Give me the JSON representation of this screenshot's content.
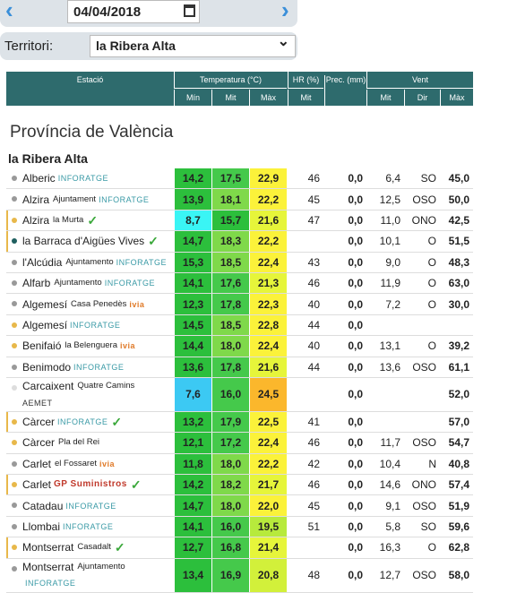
{
  "date": "04/04/2018",
  "territory_label": "Territori:",
  "territory_value": "la Ribera Alta",
  "header": {
    "station": "Estació",
    "temperature": "Temperatura (°C)",
    "humidity": "HR (%)",
    "precip": "Prec. (mm)",
    "wind": "Vent",
    "sub": [
      "Mín",
      "Mit",
      "Màx",
      "Mit",
      "Mit",
      "Dir",
      "Màx"
    ]
  },
  "province": "Província de València",
  "region": "la Ribera Alta",
  "rows": [
    {
      "name": "Alberic",
      "sub": null,
      "source": "INFORATGE",
      "check": false,
      "dot": "#999",
      "tall": false,
      "tmin": "14,2",
      "tmit": "17,5",
      "tmax": "22,9",
      "hr": "46",
      "prec": "0,0",
      "wmit": "6,4",
      "wdir": "SO",
      "wmax": "45,0"
    },
    {
      "name": "Alzira",
      "sub": "Ajuntament",
      "source": "INFORATGE",
      "check": false,
      "dot": "#999",
      "tall": false,
      "tmin": "13,9",
      "tmit": "18,1",
      "tmax": "22,2",
      "hr": "45",
      "prec": "0,0",
      "wmit": "12,5",
      "wdir": "OSO",
      "wmax": "50,0"
    },
    {
      "name": "Alzira",
      "sub": "la Murta",
      "source": null,
      "check": true,
      "dot": "#e8b84a",
      "tall": false,
      "tmin": "8,7",
      "tmit": "15,7",
      "tmax": "21,6",
      "hr": "47",
      "prec": "0,0",
      "wmit": "11,0",
      "wdir": "ONO",
      "wmax": "42,5"
    },
    {
      "name": "la Barraca d'Aigües Vives",
      "sub": null,
      "source": null,
      "check": true,
      "dot": "#1f5f5f",
      "tall": false,
      "tmin": "14,7",
      "tmit": "18,3",
      "tmax": "22,2",
      "hr": null,
      "prec": "0,0",
      "wmit": "10,1",
      "wdir": "O",
      "wmax": "51,5"
    },
    {
      "name": "l'Alcúdia",
      "sub": "Ajuntamento",
      "source": "INFORATGE",
      "check": false,
      "dot": "#999",
      "tall": false,
      "tmin": "15,3",
      "tmit": "18,5",
      "tmax": "22,4",
      "hr": "43",
      "prec": "0,0",
      "wmit": "9,0",
      "wdir": "O",
      "wmax": "48,3"
    },
    {
      "name": "Alfarb",
      "sub": "Ajuntamento",
      "source": "INFORATGE",
      "check": false,
      "dot": "#999",
      "tall": false,
      "tmin": "14,1",
      "tmit": "17,6",
      "tmax": "21,3",
      "hr": "46",
      "prec": "0,0",
      "wmit": "11,9",
      "wdir": "O",
      "wmax": "63,0"
    },
    {
      "name": "Algemesí",
      "sub": "Casa Penedès",
      "source": "ivia",
      "check": false,
      "dot": "#999",
      "tall": false,
      "tmin": "12,3",
      "tmit": "17,8",
      "tmax": "22,3",
      "hr": "40",
      "prec": "0,0",
      "wmit": "7,2",
      "wdir": "O",
      "wmax": "30,0"
    },
    {
      "name": "Algemesí",
      "sub": null,
      "source": "INFORATGE",
      "check": false,
      "dot": "#e8b84a",
      "tall": false,
      "tmin": "14,5",
      "tmit": "18,5",
      "tmax": "22,8",
      "hr": "44",
      "prec": "0,0",
      "wmit": null,
      "wdir": null,
      "wmax": null
    },
    {
      "name": "Benifaió",
      "sub": "la Belenguera",
      "source": "ivia",
      "check": false,
      "dot": "#e8b84a",
      "tall": false,
      "tmin": "14,4",
      "tmit": "18,0",
      "tmax": "22,4",
      "hr": "40",
      "prec": "0,0",
      "wmit": "13,1",
      "wdir": "O",
      "wmax": "39,2"
    },
    {
      "name": "Benimodo",
      "sub": null,
      "source": "INFORATGE",
      "check": false,
      "dot": "#999",
      "tall": false,
      "tmin": "13,6",
      "tmit": "17,8",
      "tmax": "21,6",
      "hr": "44",
      "prec": "0,0",
      "wmit": "13,6",
      "wdir": "OSO",
      "wmax": "61,1"
    },
    {
      "name": "Carcaixent",
      "sub": "Quatre Camins",
      "source": "AEMET",
      "check": false,
      "dot": "#ddd",
      "tall": true,
      "tmin": "7,6",
      "tmit": "16,0",
      "tmax": "24,5",
      "hr": null,
      "prec": "0,0",
      "wmit": null,
      "wdir": null,
      "wmax": "52,0"
    },
    {
      "name": "Càrcer",
      "sub": null,
      "source": "INFORATGE",
      "check": true,
      "dot": "#e8b84a",
      "tall": false,
      "tmin": "13,2",
      "tmit": "17,9",
      "tmax": "22,5",
      "hr": "41",
      "prec": "0,0",
      "wmit": null,
      "wdir": null,
      "wmax": "57,0"
    },
    {
      "name": "Càrcer",
      "sub": "Pla del Rei",
      "source": null,
      "check": false,
      "dot": "#e8b84a",
      "tall": false,
      "tmin": "12,1",
      "tmit": "17,2",
      "tmax": "22,4",
      "hr": "46",
      "prec": "0,0",
      "wmit": "11,7",
      "wdir": "OSO",
      "wmax": "54,7"
    },
    {
      "name": "Carlet",
      "sub": "el Fossaret",
      "source": "ivia",
      "check": false,
      "dot": "#999",
      "tall": false,
      "tmin": "11,8",
      "tmit": "18,0",
      "tmax": "22,2",
      "hr": "42",
      "prec": "0,0",
      "wmit": "10,4",
      "wdir": "N",
      "wmax": "40,8"
    },
    {
      "name": "Carlet",
      "sub": null,
      "source": "GP Suministros",
      "check": true,
      "dot": "#e8b84a",
      "tall": false,
      "tmin": "14,2",
      "tmit": "18,2",
      "tmax": "21,7",
      "hr": "46",
      "prec": "0,0",
      "wmit": "14,6",
      "wdir": "ONO",
      "wmax": "57,4"
    },
    {
      "name": "Catadau",
      "sub": null,
      "source": "INFORATGE",
      "check": false,
      "dot": "#999",
      "tall": false,
      "tmin": "14,7",
      "tmit": "18,0",
      "tmax": "22,0",
      "hr": "45",
      "prec": "0,0",
      "wmit": "9,1",
      "wdir": "OSO",
      "wmax": "51,9"
    },
    {
      "name": "Llombai",
      "sub": null,
      "source": "INFORATGE",
      "check": false,
      "dot": "#999",
      "tall": false,
      "tmin": "14,1",
      "tmit": "16,0",
      "tmax": "19,5",
      "hr": "51",
      "prec": "0,0",
      "wmit": "5,8",
      "wdir": "SO",
      "wmax": "59,6"
    },
    {
      "name": "Montserrat",
      "sub": "Casadalt",
      "source": null,
      "check": true,
      "dot": "#e8b84a",
      "tall": false,
      "tmin": "12,7",
      "tmit": "16,8",
      "tmax": "21,4",
      "hr": null,
      "prec": "0,0",
      "wmit": "16,3",
      "wdir": "O",
      "wmax": "62,8"
    },
    {
      "name": "Montserrat",
      "sub": "Ajuntamento",
      "source": "INFORATGE",
      "check": false,
      "dot": "#999",
      "tall": true,
      "tmin": "13,4",
      "tmit": "16,9",
      "tmax": "20,8",
      "hr": "48",
      "prec": "0,0",
      "wmit": "12,7",
      "wdir": "OSO",
      "wmax": "58,0"
    }
  ]
}
